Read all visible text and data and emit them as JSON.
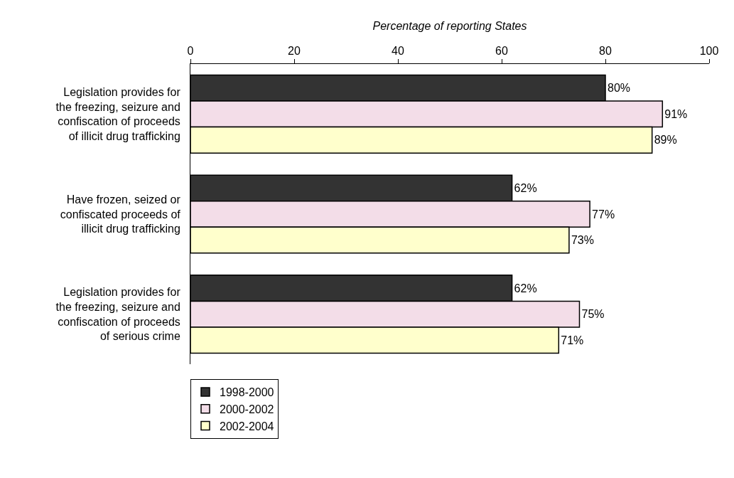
{
  "chart_data": {
    "type": "bar",
    "orientation": "horizontal",
    "xlabel": "Percentage of reporting States",
    "categories": [
      "Legislation provides for\nthe freezing, seizure and\nconfiscation of proceeds\nof illicit drug trafficking",
      "Have frozen, seized or\nconfiscated proceeds of\nillicit drug trafficking",
      "Legislation provides for\nthe freezing, seizure and\nconfiscation of proceeds\nof serious crime"
    ],
    "series": [
      {
        "name": "1998-2000",
        "color": "#333333",
        "values": [
          80,
          62,
          62
        ],
        "value_labels": [
          "80%",
          "62%",
          "62%"
        ]
      },
      {
        "name": "2000-2002",
        "color": "#f3dde8",
        "values": [
          91,
          77,
          75
        ],
        "value_labels": [
          "91%",
          "77%",
          "75%"
        ]
      },
      {
        "name": "2002-2004",
        "color": "#ffffcc",
        "values": [
          89,
          73,
          71
        ],
        "value_labels": [
          "89%",
          "73%",
          "71%"
        ]
      }
    ],
    "xlim": [
      0,
      100
    ],
    "xticks": [
      0,
      20,
      40,
      60,
      80,
      100
    ],
    "grid": false,
    "legend": "bottom left"
  }
}
